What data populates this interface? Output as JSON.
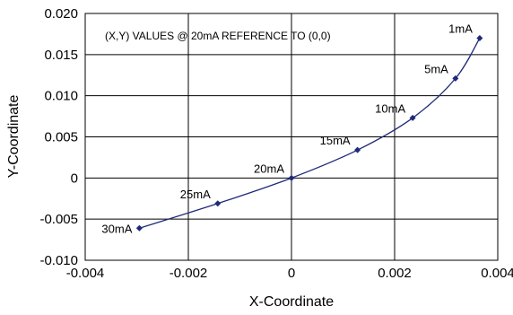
{
  "chart_data": {
    "type": "scatter",
    "title": "",
    "annotation": "(X,Y) VALUES @ 20mA REFERENCE TO (0,0)",
    "xlabel": "X-Coordinate",
    "ylabel": "Y-Coordinate",
    "xlim": [
      -0.004,
      0.004
    ],
    "ylim": [
      -0.01,
      0.02
    ],
    "xticks": [
      "-0.004",
      "-0.002",
      "0",
      "0.002",
      "0.004"
    ],
    "yticks": [
      "0.020",
      "0.015",
      "0.010",
      "0.005",
      "0",
      "-0.005",
      "-0.010"
    ],
    "grid": true,
    "line_color": "#1f2a7a",
    "marker_color": "#1f2a7a",
    "points": [
      {
        "label": "1mA",
        "x": 0.00365,
        "y": 0.017
      },
      {
        "label": "5mA",
        "x": 0.00318,
        "y": 0.0121
      },
      {
        "label": "10mA",
        "x": 0.00235,
        "y": 0.0073
      },
      {
        "label": "15mA",
        "x": 0.00128,
        "y": 0.0034
      },
      {
        "label": "20mA",
        "x": 0.0,
        "y": 0.0
      },
      {
        "label": "25mA",
        "x": -0.00143,
        "y": -0.0031
      },
      {
        "label": "30mA",
        "x": -0.00295,
        "y": -0.0061
      }
    ]
  }
}
